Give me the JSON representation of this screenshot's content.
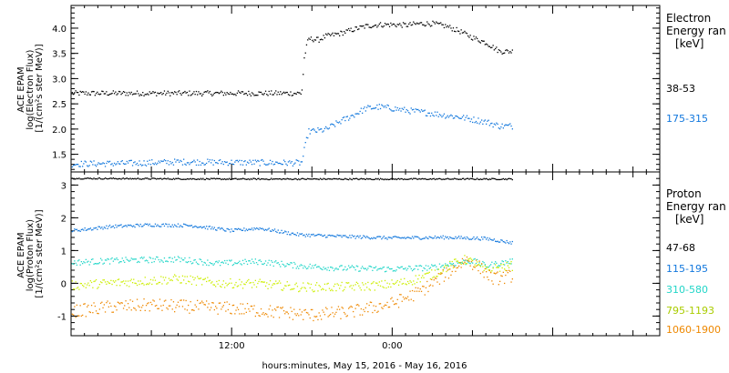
{
  "colors": {
    "black": "#000000",
    "blue": "#1177dd",
    "cyan": "#22d6c8",
    "yellow": "#ccee00",
    "orange": "#ee8800"
  },
  "figure": {
    "x_axis_label": "hours:minutes, May 15, 2016 - May 16, 2016"
  },
  "chart_data": [
    {
      "type": "scatter",
      "panel": "electron",
      "ylabel_lines": [
        "ACE EPAM",
        "log(Electron Flux)",
        "[1/(cm²s ster MeV)]"
      ],
      "legend_title_lines": [
        "Electron",
        "Energy ran",
        "[keV]"
      ],
      "x_ticks": [
        "12:00",
        "0:00"
      ],
      "x_range_hours": [
        0,
        44
      ],
      "data_end_hour": 33,
      "ylim": [
        1.15,
        4.45
      ],
      "y_ticks": [
        "1.5",
        "2.0",
        "2.5",
        "3.0",
        "3.5",
        "4.0"
      ],
      "grid": false,
      "legend_placement": "right",
      "series": [
        {
          "name": "38-53",
          "color": "#000000",
          "points": [
            [
              0,
              2.72
            ],
            [
              4,
              2.72
            ],
            [
              8,
              2.72
            ],
            [
              12,
              2.72
            ],
            [
              16,
              2.72
            ],
            [
              17.2,
              2.72
            ],
            [
              17.4,
              3.45
            ],
            [
              17.7,
              3.8
            ],
            [
              18.5,
              3.78
            ],
            [
              19,
              3.85
            ],
            [
              20,
              3.9
            ],
            [
              21,
              3.98
            ],
            [
              22,
              4.05
            ],
            [
              23,
              4.08
            ],
            [
              24,
              4.08
            ],
            [
              25,
              4.07
            ],
            [
              26,
              4.1
            ],
            [
              27,
              4.1
            ],
            [
              28,
              4.05
            ],
            [
              29,
              3.95
            ],
            [
              30,
              3.82
            ],
            [
              31,
              3.72
            ],
            [
              32,
              3.55
            ],
            [
              33,
              3.55
            ]
          ]
        },
        {
          "name": "175-315",
          "color": "#1177dd",
          "points": [
            [
              0,
              1.32
            ],
            [
              4,
              1.33
            ],
            [
              8,
              1.36
            ],
            [
              12,
              1.35
            ],
            [
              16,
              1.34
            ],
            [
              17.2,
              1.34
            ],
            [
              17.4,
              1.6
            ],
            [
              17.7,
              1.96
            ],
            [
              18.5,
              1.98
            ],
            [
              19,
              2.0
            ],
            [
              20,
              2.15
            ],
            [
              21,
              2.28
            ],
            [
              22,
              2.42
            ],
            [
              23,
              2.45
            ],
            [
              24,
              2.42
            ],
            [
              25,
              2.38
            ],
            [
              26,
              2.35
            ],
            [
              27,
              2.32
            ],
            [
              28,
              2.28
            ],
            [
              29,
              2.25
            ],
            [
              30,
              2.2
            ],
            [
              31,
              2.15
            ],
            [
              32,
              2.07
            ],
            [
              33,
              2.07
            ]
          ]
        }
      ]
    },
    {
      "type": "scatter",
      "panel": "proton",
      "ylabel_lines": [
        "ACE EPAM",
        "log(Proton Flux)",
        "[1/(cm²s ster MeV)]"
      ],
      "legend_title_lines": [
        "Proton",
        "Energy ran",
        "[keV]"
      ],
      "x_ticks": [
        "12:00",
        "0:00"
      ],
      "x_range_hours": [
        0,
        44
      ],
      "data_end_hour": 33,
      "ylim": [
        -1.6,
        3.4
      ],
      "y_ticks": [
        "-1",
        "0",
        "1",
        "2",
        "3"
      ],
      "grid": false,
      "legend_placement": "right",
      "series": [
        {
          "name": "47-68",
          "color": "#000000",
          "points": [
            [
              0,
              3.22
            ],
            [
              11,
              3.2
            ],
            [
              22,
              3.2
            ],
            [
              33,
              3.2
            ]
          ]
        },
        {
          "name": "115-195",
          "color": "#1177dd",
          "points": [
            [
              0,
              1.62
            ],
            [
              3,
              1.75
            ],
            [
              6,
              1.8
            ],
            [
              9,
              1.78
            ],
            [
              12,
              1.62
            ],
            [
              14,
              1.7
            ],
            [
              17,
              1.5
            ],
            [
              20,
              1.45
            ],
            [
              24,
              1.4
            ],
            [
              28,
              1.42
            ],
            [
              31,
              1.38
            ],
            [
              33,
              1.25
            ]
          ]
        },
        {
          "name": "310-580",
          "color": "#22d6c8",
          "points": [
            [
              0,
              0.65
            ],
            [
              4,
              0.72
            ],
            [
              8,
              0.75
            ],
            [
              11,
              0.62
            ],
            [
              14,
              0.68
            ],
            [
              17,
              0.55
            ],
            [
              20,
              0.48
            ],
            [
              24,
              0.45
            ],
            [
              27,
              0.5
            ],
            [
              28.5,
              0.62
            ],
            [
              30,
              0.7
            ],
            [
              31,
              0.55
            ],
            [
              33,
              0.7
            ]
          ]
        },
        {
          "name": "795-1193",
          "color": "#ccee00",
          "points": [
            [
              0,
              -0.05
            ],
            [
              4,
              0.05
            ],
            [
              8,
              0.15
            ],
            [
              11,
              0.02
            ],
            [
              14,
              0.0
            ],
            [
              17,
              -0.1
            ],
            [
              20,
              -0.1
            ],
            [
              23,
              -0.05
            ],
            [
              25,
              0.05
            ],
            [
              27,
              0.3
            ],
            [
              28.5,
              0.6
            ],
            [
              29.5,
              0.75
            ],
            [
              31,
              0.4
            ],
            [
              32,
              0.5
            ],
            [
              33,
              0.55
            ]
          ]
        },
        {
          "name": "1060-1900",
          "color": "#ee8800",
          "points": [
            [
              0,
              -0.85
            ],
            [
              3,
              -0.7
            ],
            [
              6,
              -0.65
            ],
            [
              9,
              -0.7
            ],
            [
              12,
              -0.75
            ],
            [
              15,
              -0.85
            ],
            [
              18,
              -0.95
            ],
            [
              21,
              -0.85
            ],
            [
              24,
              -0.6
            ],
            [
              26,
              -0.25
            ],
            [
              28,
              0.3
            ],
            [
              29.5,
              0.75
            ],
            [
              30.5,
              0.5
            ],
            [
              31.5,
              0.15
            ],
            [
              33,
              0.25
            ]
          ]
        }
      ]
    }
  ]
}
